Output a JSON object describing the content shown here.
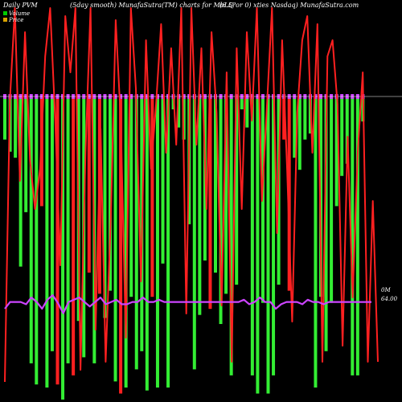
{
  "chart_data": {
    "type": "bar",
    "title_left": "Daily PVM",
    "title_center": "(5day smooth) MunafaSutra(TM) charts for MbLQ",
    "title_right": "(6.5?or 0) xties Nasdaq) MunafaSutra.com",
    "legend": [
      {
        "label": "Volume",
        "color": "#00cc00"
      },
      {
        "label": "Price",
        "color": "#d9a400"
      }
    ],
    "y_labels": {
      "volume_zero": "0M",
      "price": "64.00"
    },
    "colors": {
      "background": "#000000",
      "volume_up": "#33ee33",
      "volume_down": "#ff2020",
      "price_line": "#ff2020",
      "pvm_line": "#cc44ff",
      "marker": "#cc44ff",
      "zero_line": "#ffffff"
    },
    "volume_bars": [
      {
        "dir": "up",
        "value": 0.14
      },
      {
        "dir": "up",
        "value": 0.18
      },
      {
        "dir": "up",
        "value": 0.2
      },
      {
        "dir": "up",
        "value": 0.56
      },
      {
        "dir": "up",
        "value": 0.38
      },
      {
        "dir": "up",
        "value": 0.88
      },
      {
        "dir": "up",
        "value": 0.95
      },
      {
        "dir": "down",
        "value": 0.36
      },
      {
        "dir": "up",
        "value": 0.96
      },
      {
        "dir": "up",
        "value": 0.84
      },
      {
        "dir": "down",
        "value": 0.95
      },
      {
        "dir": "up",
        "value": 1.0
      },
      {
        "dir": "up",
        "value": 0.88
      },
      {
        "dir": "down",
        "value": 0.92
      },
      {
        "dir": "up",
        "value": 0.74
      },
      {
        "dir": "up",
        "value": 0.86
      },
      {
        "dir": "down",
        "value": 0.58
      },
      {
        "dir": "up",
        "value": 0.88
      },
      {
        "dir": "down",
        "value": 0.65
      },
      {
        "dir": "up",
        "value": 0.73
      },
      {
        "dir": "up",
        "value": 0.64
      },
      {
        "dir": "up",
        "value": 0.94
      },
      {
        "dir": "down",
        "value": 0.98
      },
      {
        "dir": "up",
        "value": 0.96
      },
      {
        "dir": "up",
        "value": 0.66
      },
      {
        "dir": "up",
        "value": 0.9
      },
      {
        "dir": "up",
        "value": 0.84
      },
      {
        "dir": "up",
        "value": 0.97
      },
      {
        "dir": "down",
        "value": 0.66
      },
      {
        "dir": "up",
        "value": 0.96
      },
      {
        "dir": "up",
        "value": 0.55
      },
      {
        "dir": "up",
        "value": 0.96
      },
      {
        "dir": "up",
        "value": 0.04
      },
      {
        "dir": "up",
        "value": 0.1
      },
      {
        "dir": "up",
        "value": 0.14
      },
      {
        "dir": "up",
        "value": 0.42
      },
      {
        "dir": "up",
        "value": 0.9
      },
      {
        "dir": "up",
        "value": 0.72
      },
      {
        "dir": "up",
        "value": 0.54
      },
      {
        "dir": "down",
        "value": 0.7
      },
      {
        "dir": "up",
        "value": 0.58
      },
      {
        "dir": "up",
        "value": 0.75
      },
      {
        "dir": "up",
        "value": 0.65
      },
      {
        "dir": "up",
        "value": 0.92
      },
      {
        "dir": "up",
        "value": 0.62
      },
      {
        "dir": "up",
        "value": 0.04
      },
      {
        "dir": "up",
        "value": 0.1
      },
      {
        "dir": "up",
        "value": 0.92
      },
      {
        "dir": "up",
        "value": 0.98
      },
      {
        "dir": "up",
        "value": 0.68
      },
      {
        "dir": "up",
        "value": 0.98
      },
      {
        "dir": "up",
        "value": 0.92
      },
      {
        "dir": "up",
        "value": 0.62
      },
      {
        "dir": "down",
        "value": 0.14
      },
      {
        "dir": "down",
        "value": 0.64
      },
      {
        "dir": "up",
        "value": 0.2
      },
      {
        "dir": "up",
        "value": 0.24
      },
      {
        "dir": "up",
        "value": 0.14
      },
      {
        "dir": "up",
        "value": 0.12
      },
      {
        "dir": "up",
        "value": 0.96
      },
      {
        "dir": "up",
        "value": 0.66
      },
      {
        "dir": "up",
        "value": 0.84
      },
      {
        "dir": "up",
        "value": 0.68
      },
      {
        "dir": "up",
        "value": 0.36
      },
      {
        "dir": "up",
        "value": 0.26
      },
      {
        "dir": "up",
        "value": 0.22
      },
      {
        "dir": "up",
        "value": 0.92
      },
      {
        "dir": "up",
        "value": 0.92
      },
      {
        "dir": "up",
        "value": 0.08
      }
    ],
    "price_series": [
      0.05,
      0.75,
      0.98,
      0.55,
      0.92,
      0.6,
      0.48,
      0.58,
      0.86,
      0.98,
      0.7,
      0.34,
      0.96,
      0.82,
      0.98,
      0.08,
      0.62,
      0.98,
      0.18,
      0.68,
      0.1,
      0.45,
      0.95,
      0.7,
      0.16,
      0.98,
      0.78,
      0.3,
      0.9,
      0.58,
      0.74,
      0.94,
      0.62,
      0.88,
      0.64,
      0.98,
      0.22,
      0.98,
      0.64,
      0.88,
      0.48,
      0.92,
      0.72,
      0.24,
      0.82,
      0.1,
      0.88,
      0.48,
      0.92,
      0.7,
      0.98,
      0.5,
      0.74,
      0.98,
      0.42,
      0.9,
      0.58,
      0.2,
      0.72,
      0.9,
      0.96,
      0.62,
      0.94,
      0.1,
      0.86,
      0.9,
      0.74,
      0.14,
      0.66,
      0.26,
      0.62,
      0.82,
      0.1,
      0.5,
      0.1
    ],
    "pvm_series": [
      0.4,
      0.46,
      0.46,
      0.46,
      0.44,
      0.5,
      0.46,
      0.4,
      0.48,
      0.52,
      0.45,
      0.36,
      0.46,
      0.48,
      0.5,
      0.46,
      0.42,
      0.46,
      0.5,
      0.44,
      0.46,
      0.48,
      0.44,
      0.44,
      0.46,
      0.46,
      0.5,
      0.46,
      0.46,
      0.48,
      0.46,
      0.46,
      0.46,
      0.46,
      0.46,
      0.46,
      0.46,
      0.46,
      0.46,
      0.46,
      0.46,
      0.46,
      0.46,
      0.46,
      0.46,
      0.48,
      0.44,
      0.46,
      0.5,
      0.46,
      0.46,
      0.4,
      0.44,
      0.46,
      0.46,
      0.46,
      0.44,
      0.48,
      0.46,
      0.46,
      0.44,
      0.46,
      0.46,
      0.46,
      0.46,
      0.46,
      0.46,
      0.46,
      0.46,
      0.46
    ]
  }
}
